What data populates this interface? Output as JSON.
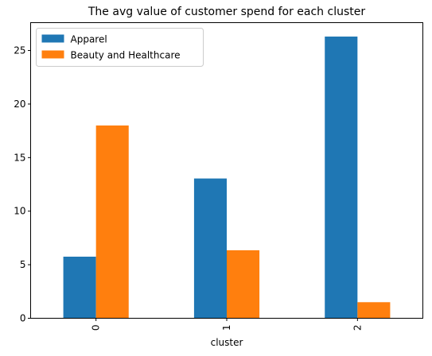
{
  "chart_data": {
    "type": "bar",
    "title": "The avg value of customer spend for each cluster",
    "xlabel": "cluster",
    "ylabel": "",
    "categories": [
      "0",
      "1",
      "2"
    ],
    "series": [
      {
        "name": "Apparel",
        "values": [
          5.75,
          13.05,
          26.3
        ],
        "color": "#1f77b4"
      },
      {
        "name": "Beauty and Healthcare",
        "values": [
          18.0,
          6.35,
          1.5
        ],
        "color": "#ff7f0e"
      }
    ],
    "ylim": [
      0,
      27.6
    ],
    "yticks": [
      0,
      5,
      10,
      15,
      20,
      25
    ],
    "grid": false,
    "legend": "top-left"
  }
}
